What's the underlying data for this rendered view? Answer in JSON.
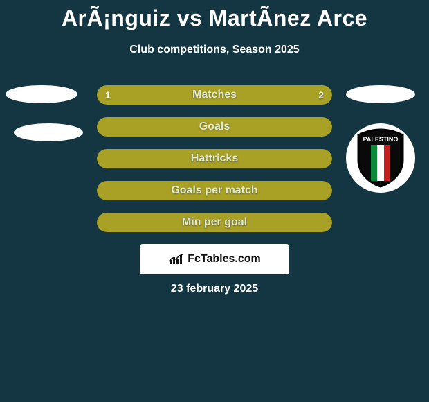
{
  "title": "ArÃ¡nguiz vs MartÃ­nez Arce",
  "subtitle": "Club competitions, Season 2025",
  "footer_date": "23 february 2025",
  "footer_brand": "FcTables.com",
  "colors": {
    "bg": "#143642",
    "bar_left": "#a8a126",
    "bar_right": "#a8a126",
    "bar_full": "#a8a126",
    "label_text": "#dfe7d5",
    "value_text": "#ffffff",
    "ellipse": "#ffffff",
    "badge_bg": "#ffffff"
  },
  "bars": [
    {
      "label": "Matches",
      "left": "1",
      "right": "2",
      "left_pct": 33.3,
      "right_pct": 66.7,
      "type": "split"
    },
    {
      "label": "Goals",
      "type": "full"
    },
    {
      "label": "Hattricks",
      "type": "full"
    },
    {
      "label": "Goals per match",
      "type": "full"
    },
    {
      "label": "Min per goal",
      "type": "full"
    }
  ],
  "crest": {
    "banner_text": "PALESTINO",
    "shield_top": "#0a0a0a",
    "shield_stripe_green": "#0b8a3a",
    "shield_stripe_white": "#ffffff",
    "shield_stripe_red": "#c22020"
  }
}
